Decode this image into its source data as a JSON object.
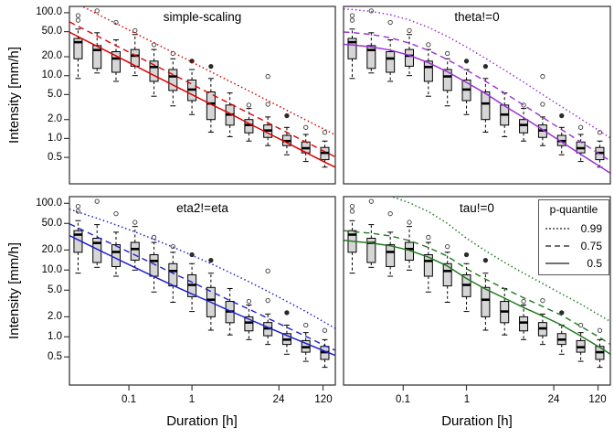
{
  "chart_data": {
    "type": "boxplot-with-quantile-lines",
    "xlabel": "Duration [h]",
    "ylabel": "Intensity [mm/h]",
    "log_axes": "xy",
    "xlim": [
      0.0114,
      188
    ],
    "ylim": [
      0.19,
      126
    ],
    "grid": false,
    "x_ticks": [
      {
        "v": 0.1,
        "label": "0.1"
      },
      {
        "v": 1,
        "label": "1"
      },
      {
        "v": 24,
        "label": "24"
      },
      {
        "v": 120,
        "label": "120"
      }
    ],
    "y_ticks": [
      {
        "v": 100,
        "label": "100.0"
      },
      {
        "v": 50,
        "label": "50.0"
      },
      {
        "v": 20,
        "label": "20.0"
      },
      {
        "v": 10,
        "label": "10.0"
      },
      {
        "v": 5,
        "label": "5.0"
      },
      {
        "v": 2,
        "label": "2.0"
      },
      {
        "v": 1,
        "label": "1.0"
      },
      {
        "v": 0.5,
        "label": "0.5"
      }
    ],
    "legend": {
      "title": "p-quantile",
      "position": "top-right-of-bottom-right-panel",
      "line_color": "#707070",
      "entries": [
        {
          "style": "dotted",
          "label": "0.99"
        },
        {
          "style": "dashed",
          "label": "0.75"
        },
        {
          "style": "solid",
          "label": "0.5"
        }
      ]
    },
    "curve_durations": [
      0.0114,
      0.015625,
      0.03125,
      0.0625,
      0.125,
      0.25,
      0.5,
      1,
      2,
      4,
      8,
      16,
      32,
      64,
      128,
      188
    ],
    "panels": [
      {
        "title": "simple-scaling",
        "color": "#e10000",
        "q99": [
          160,
          136.8,
          95.9,
          67.4,
          47.3,
          33.2,
          23.4,
          16.4,
          11.5,
          8.1,
          5.7,
          4.0,
          2.81,
          1.97,
          1.39,
          1.14
        ],
        "q75": [
          71.5,
          60.9,
          42.7,
          30.0,
          21.1,
          14.8,
          10.4,
          7.3,
          5.1,
          3.6,
          2.53,
          1.78,
          1.25,
          0.88,
          0.62,
          0.51
        ],
        "q50": [
          49.0,
          41.7,
          29.3,
          20.6,
          14.4,
          10.1,
          7.1,
          5.0,
          3.5,
          2.5,
          1.73,
          1.22,
          0.86,
          0.6,
          0.42,
          0.35
        ]
      },
      {
        "title": "theta!=0",
        "color": "#9b30d5",
        "q99": [
          114.8,
          112.5,
          104.8,
          92.8,
          76.6,
          58.6,
          41.9,
          28.5,
          18.8,
          12.2,
          7.9,
          5.0,
          3.2,
          2.05,
          1.31,
          1.02
        ],
        "q75": [
          49.4,
          48.4,
          45.1,
          39.9,
          32.9,
          25.2,
          18.0,
          12.3,
          8.1,
          5.3,
          3.4,
          2.17,
          1.38,
          0.88,
          0.56,
          0.44
        ],
        "q50": [
          31.4,
          30.8,
          28.7,
          25.4,
          21.0,
          16.0,
          11.5,
          7.8,
          5.2,
          3.3,
          2.15,
          1.38,
          0.88,
          0.56,
          0.36,
          0.28
        ]
      },
      {
        "title": "eta2!=eta",
        "color": "#1f1fd0",
        "q99": [
          81.7,
          74.0,
          59.8,
          47.5,
          37.3,
          28.9,
          22.1,
          16.7,
          12.5,
          9.2,
          6.7,
          4.8,
          3.4,
          2.4,
          1.65,
          1.34
        ],
        "q75": [
          49.4,
          42.9,
          31.4,
          23.0,
          16.8,
          12.3,
          9.0,
          6.6,
          4.8,
          3.5,
          2.6,
          1.9,
          1.39,
          1.02,
          0.74,
          0.63
        ],
        "q50": [
          32.9,
          28.4,
          20.6,
          15.0,
          10.9,
          8.0,
          5.9,
          4.4,
          3.3,
          2.45,
          1.84,
          1.39,
          1.05,
          0.8,
          0.61,
          0.53
        ]
      },
      {
        "title": "tau!=0",
        "color": "#217a21",
        "q99": [
          185,
          165,
          148,
          128,
          102,
          75,
          50,
          30,
          19.5,
          13,
          9,
          6.3,
          4.4,
          3.1,
          2.1,
          1.7
        ],
        "q75": [
          39.0,
          37.8,
          35.7,
          32.5,
          27.7,
          21.8,
          16.1,
          10.5,
          7.3,
          5.3,
          3.85,
          2.85,
          2.1,
          1.44,
          0.98,
          0.77
        ],
        "q50": [
          28.0,
          27.0,
          25.5,
          23.2,
          19.8,
          15.6,
          11.5,
          7.5,
          5.2,
          3.8,
          2.75,
          2.05,
          1.5,
          1.03,
          0.7,
          0.55
        ]
      }
    ],
    "boxplots": {
      "shared_across_panels": true,
      "box_fill": "#d6d6d6",
      "durations": [
        0.015625,
        0.03125,
        0.0625,
        0.125,
        0.25,
        0.5,
        1,
        2,
        4,
        8,
        16,
        32,
        64,
        128
      ],
      "median": [
        34,
        25.5,
        18.7,
        20.7,
        13.7,
        9.7,
        6.0,
        3.6,
        2.4,
        1.64,
        1.34,
        0.91,
        0.7,
        0.59
      ],
      "q3": [
        39,
        30,
        24,
        26,
        17,
        12.5,
        8.5,
        5.5,
        3.4,
        2.0,
        1.64,
        1.12,
        0.88,
        0.72
      ],
      "q1": [
        18.5,
        13,
        11.3,
        14.1,
        8.1,
        5.8,
        4.0,
        2.0,
        1.63,
        1.23,
        1.04,
        0.77,
        0.59,
        0.46
      ],
      "whisker_high": [
        55,
        48,
        37,
        45,
        26,
        18.5,
        12.5,
        9.0,
        5.3,
        3.0,
        2.2,
        1.5,
        1.16,
        0.91
      ],
      "whisker_low": [
        9.0,
        11,
        8.1,
        10,
        4.7,
        3.3,
        2.4,
        1.26,
        1.07,
        0.91,
        0.77,
        0.55,
        0.43,
        0.35
      ],
      "outliers": [
        [
          {
            "v": 90
          },
          {
            "v": 76
          }
        ],
        [
          {
            "v": 107
          }
        ],
        [
          {
            "v": 70
          }
        ],
        [
          {
            "v": 52
          }
        ],
        [
          {
            "v": 31
          }
        ],
        [
          {
            "v": 22.5
          }
        ],
        [
          {
            "v": 17,
            "f": 1
          }
        ],
        [
          {
            "v": 14,
            "f": 1
          }
        ],
        [],
        [
          {
            "v": 3.4
          }
        ],
        [
          {
            "v": 9.7
          },
          {
            "v": 3.5
          }
        ],
        [
          {
            "v": 2.3,
            "f": 1
          }
        ],
        [
          {
            "v": 1.5
          }
        ],
        [
          {
            "v": 1.25
          }
        ]
      ]
    }
  }
}
